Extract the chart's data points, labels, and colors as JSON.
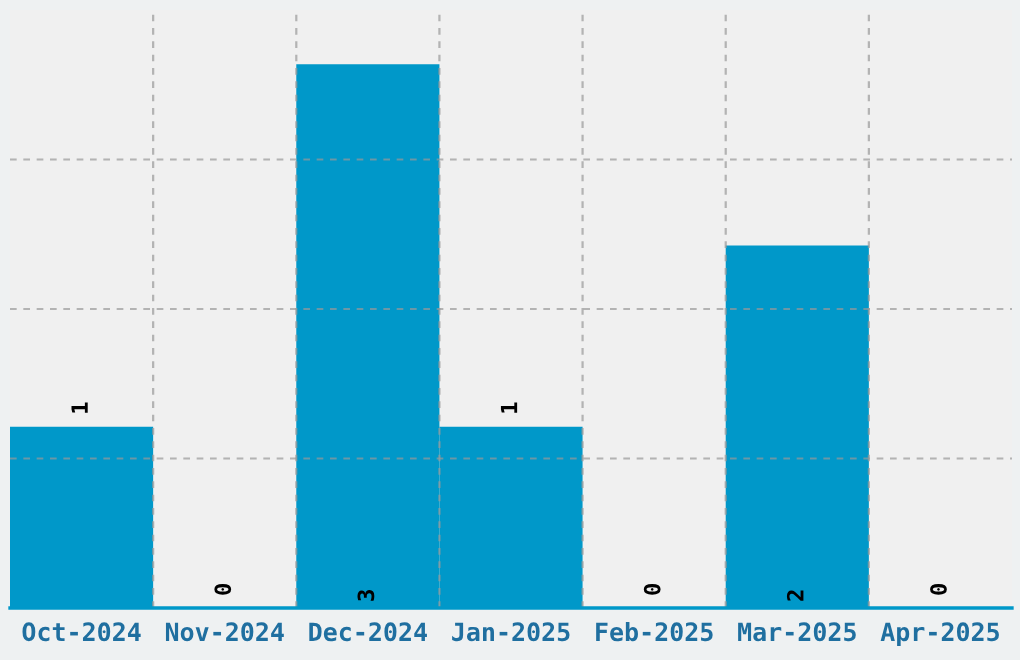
{
  "chart_data": {
    "type": "bar",
    "categories": [
      "Oct-2024",
      "Nov-2024",
      "Dec-2024",
      "Jan-2025",
      "Feb-2025",
      "Mar-2025",
      "Apr-2025"
    ],
    "values": [
      1,
      0,
      3,
      1,
      0,
      2,
      0
    ],
    "color": "#0098c9",
    "ylim": [
      0,
      3.3
    ],
    "yticks": [
      {
        "value": 0.825,
        "label": null
      },
      {
        "value": 1.65,
        "label": null
      },
      {
        "value": 2.475,
        "label": null
      }
    ],
    "tick_labels": "x",
    "grid": true,
    "data_labels": true
  }
}
